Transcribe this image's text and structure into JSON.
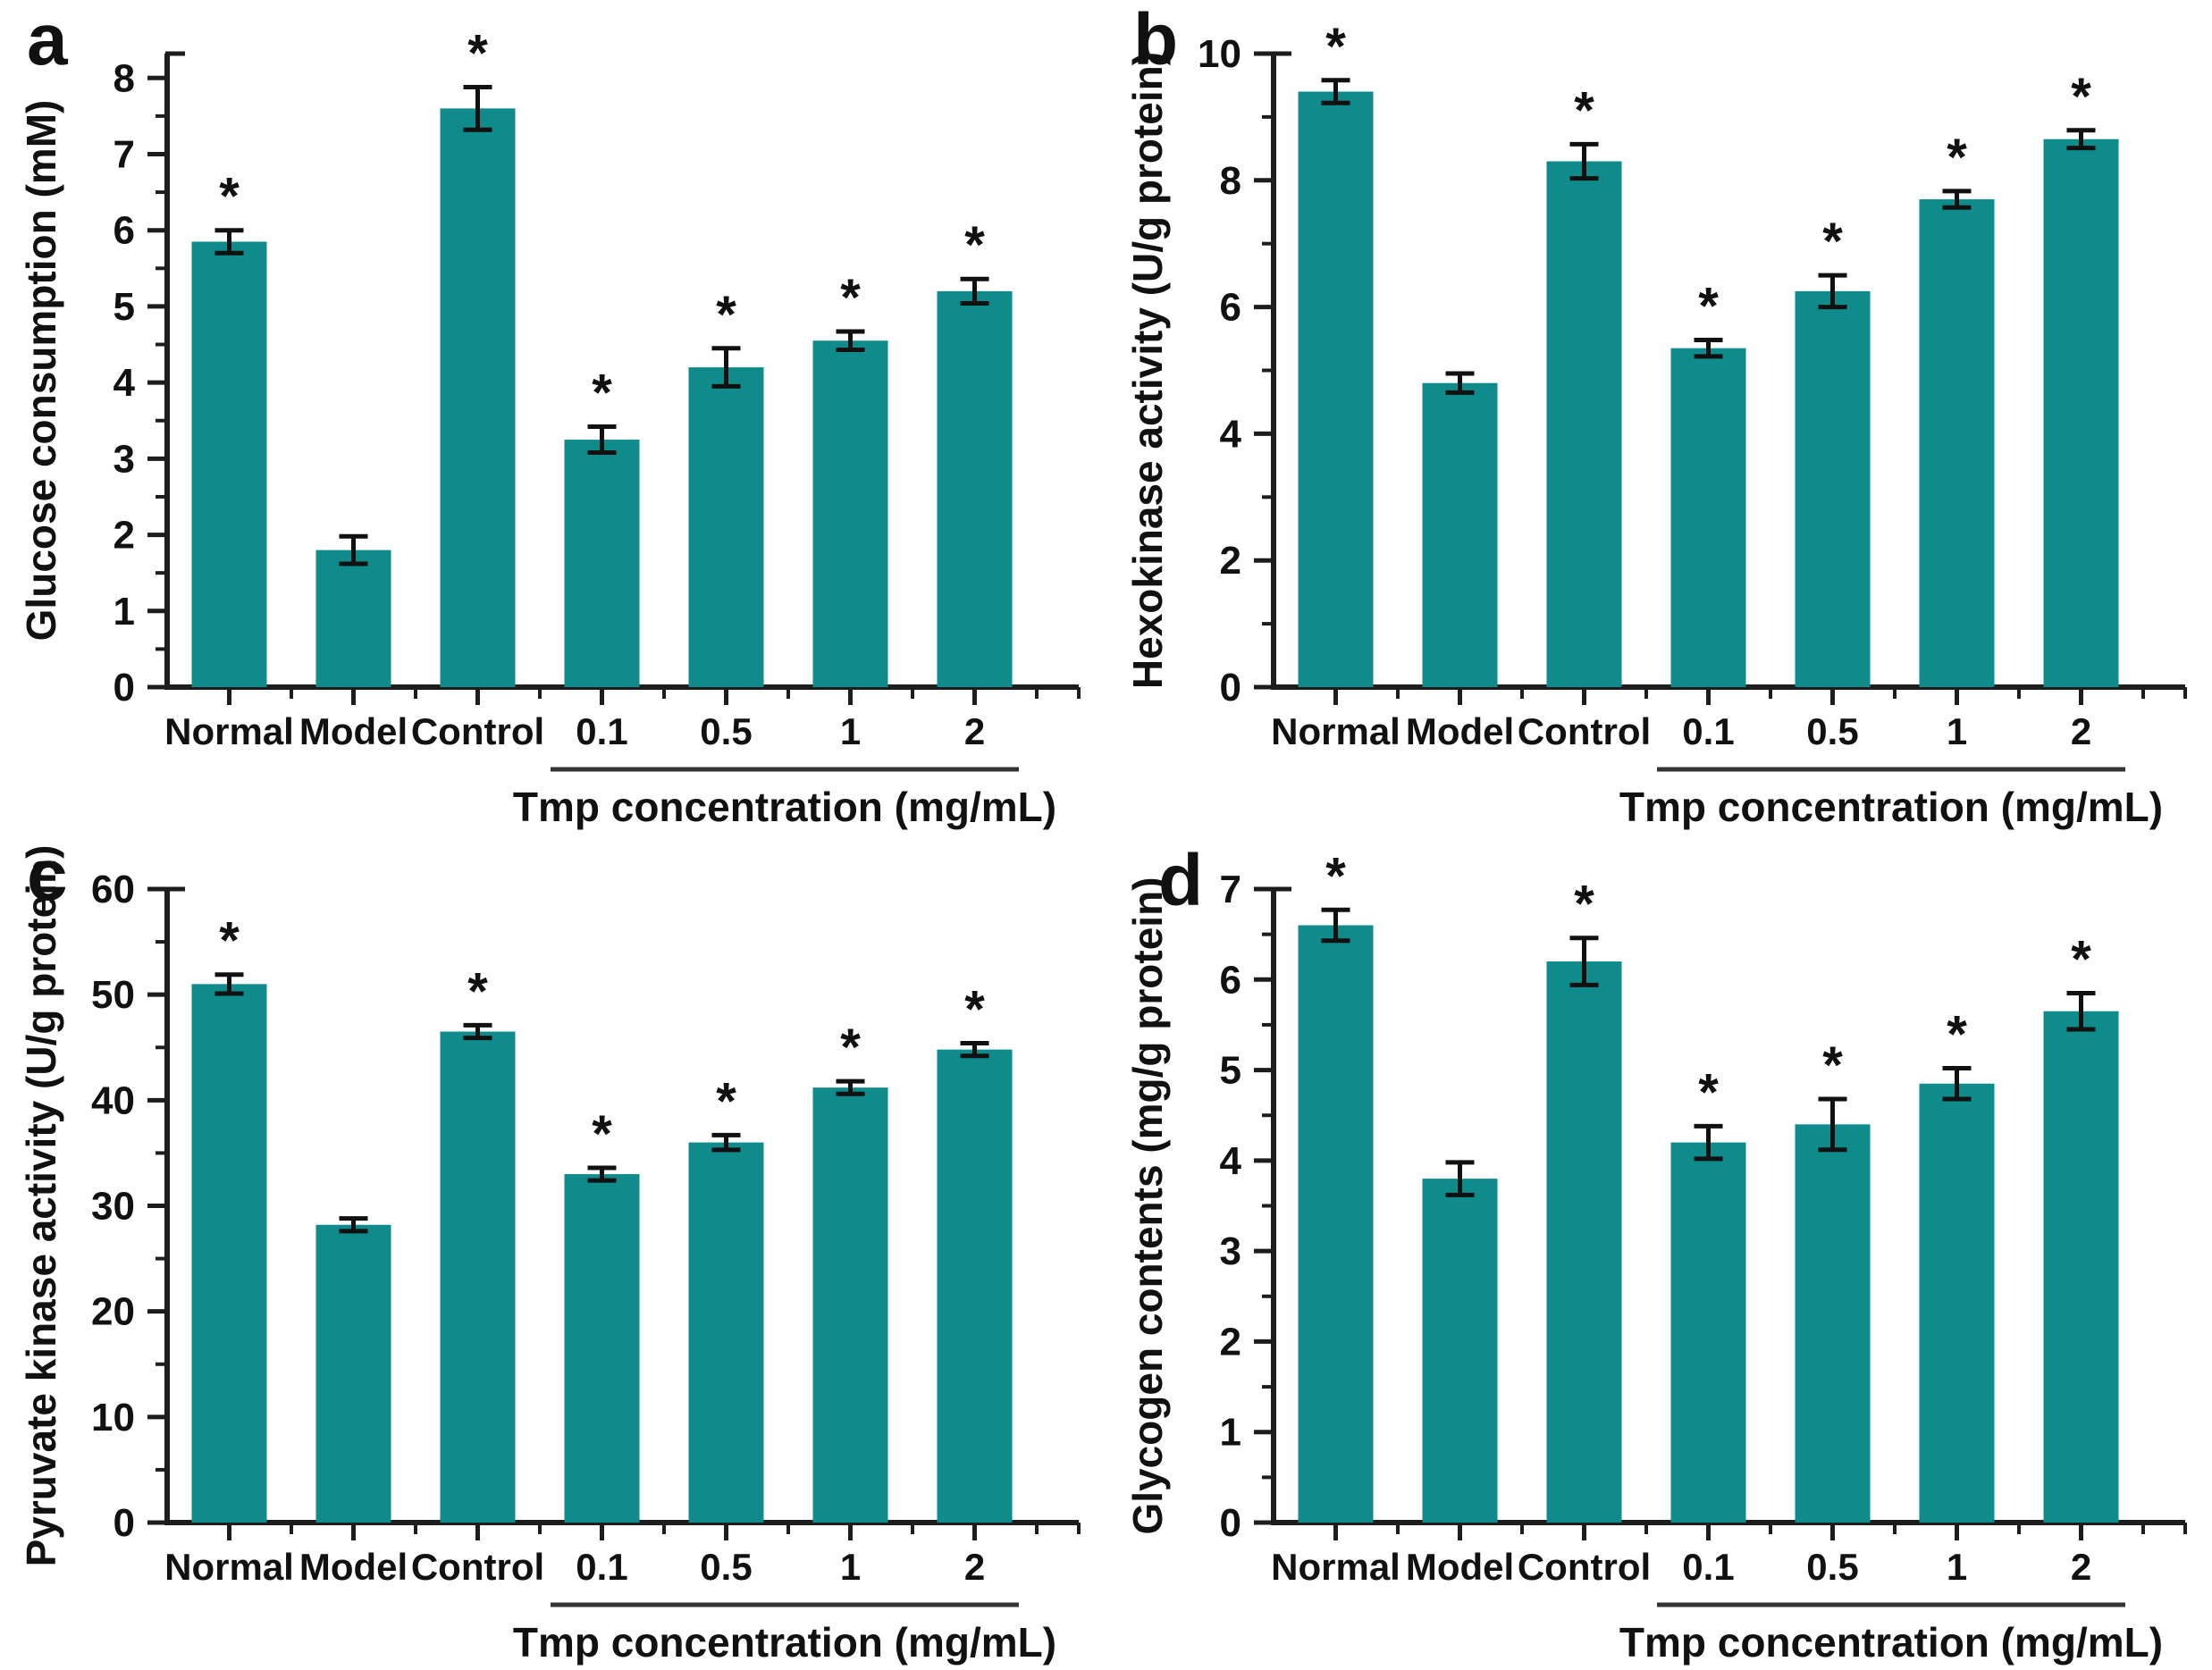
{
  "figure": {
    "background": "#ffffff",
    "bar_color": "#0f8b8b",
    "axis_color": "#1d1d1d",
    "error_color": "#111111",
    "text_color": "#111111"
  },
  "chart_data": [
    {
      "type": "bar",
      "panel_letter": "a",
      "ylabel": "Glucose consumption (mM)",
      "xlabel": "",
      "categories": [
        "Normal",
        "Model",
        "Control",
        "0.1",
        "0.5",
        "1",
        "2"
      ],
      "values": [
        5.85,
        1.8,
        7.6,
        3.25,
        4.2,
        4.55,
        5.2
      ],
      "errors": [
        0.15,
        0.18,
        0.28,
        0.17,
        0.25,
        0.12,
        0.16
      ],
      "significance": [
        "*",
        "",
        "*",
        "*",
        "*",
        "*",
        "*"
      ],
      "ylim": [
        0,
        8
      ],
      "axis_top": 8.32,
      "ytick_step": 1,
      "yminor_step": 0.5,
      "grid": false,
      "group_label": "Tmp concentration (mg/mL)",
      "group_span": [
        3,
        6
      ]
    },
    {
      "type": "bar",
      "panel_letter": "b",
      "ylabel": "Hexokinase activity (U/g protein)",
      "xlabel": "",
      "categories": [
        "Normal",
        "Model",
        "Control",
        "0.1",
        "0.5",
        "1",
        "2"
      ],
      "values": [
        9.4,
        4.8,
        8.3,
        5.35,
        6.25,
        7.7,
        8.65
      ],
      "errors": [
        0.18,
        0.15,
        0.27,
        0.13,
        0.25,
        0.13,
        0.14
      ],
      "significance": [
        "*",
        "",
        "*",
        "*",
        "*",
        "*",
        "*"
      ],
      "ylim": [
        0,
        10
      ],
      "axis_top": 10,
      "ytick_step": 2,
      "yminor_step": 1,
      "grid": false,
      "group_label": "Tmp concentration (mg/mL)",
      "group_span": [
        3,
        6
      ]
    },
    {
      "type": "bar",
      "panel_letter": "c",
      "ylabel": "Pyruvate kinase activity (U/g protein)",
      "xlabel": "",
      "categories": [
        "Normal",
        "Model",
        "Control",
        "0.1",
        "0.5",
        "1",
        "2"
      ],
      "values": [
        51,
        28.2,
        46.5,
        33,
        36,
        41.2,
        44.8
      ],
      "errors": [
        0.9,
        0.6,
        0.6,
        0.6,
        0.7,
        0.6,
        0.6
      ],
      "significance": [
        "*",
        "",
        "*",
        "*",
        "*",
        "*",
        "*"
      ],
      "ylim": [
        0,
        60
      ],
      "axis_top": 60,
      "ytick_step": 10,
      "yminor_step": 5,
      "grid": false,
      "group_label": "Tmp concentration (mg/mL)",
      "group_span": [
        3,
        6
      ]
    },
    {
      "type": "bar",
      "panel_letter": "d",
      "ylabel": "Glycogen contents (mg/g protein)",
      "xlabel": "",
      "categories": [
        "Normal",
        "Model",
        "Control",
        "0.1",
        "0.5",
        "1",
        "2"
      ],
      "values": [
        6.6,
        3.8,
        6.2,
        4.2,
        4.4,
        4.85,
        5.65
      ],
      "errors": [
        0.17,
        0.18,
        0.26,
        0.18,
        0.28,
        0.17,
        0.2
      ],
      "significance": [
        "*",
        "",
        "*",
        "*",
        "*",
        "*",
        "*"
      ],
      "ylim": [
        0,
        7
      ],
      "axis_top": 7,
      "ytick_step": 1,
      "yminor_step": 0.5,
      "grid": false,
      "group_label": "Tmp concentration (mg/mL)",
      "group_span": [
        3,
        6
      ]
    }
  ]
}
